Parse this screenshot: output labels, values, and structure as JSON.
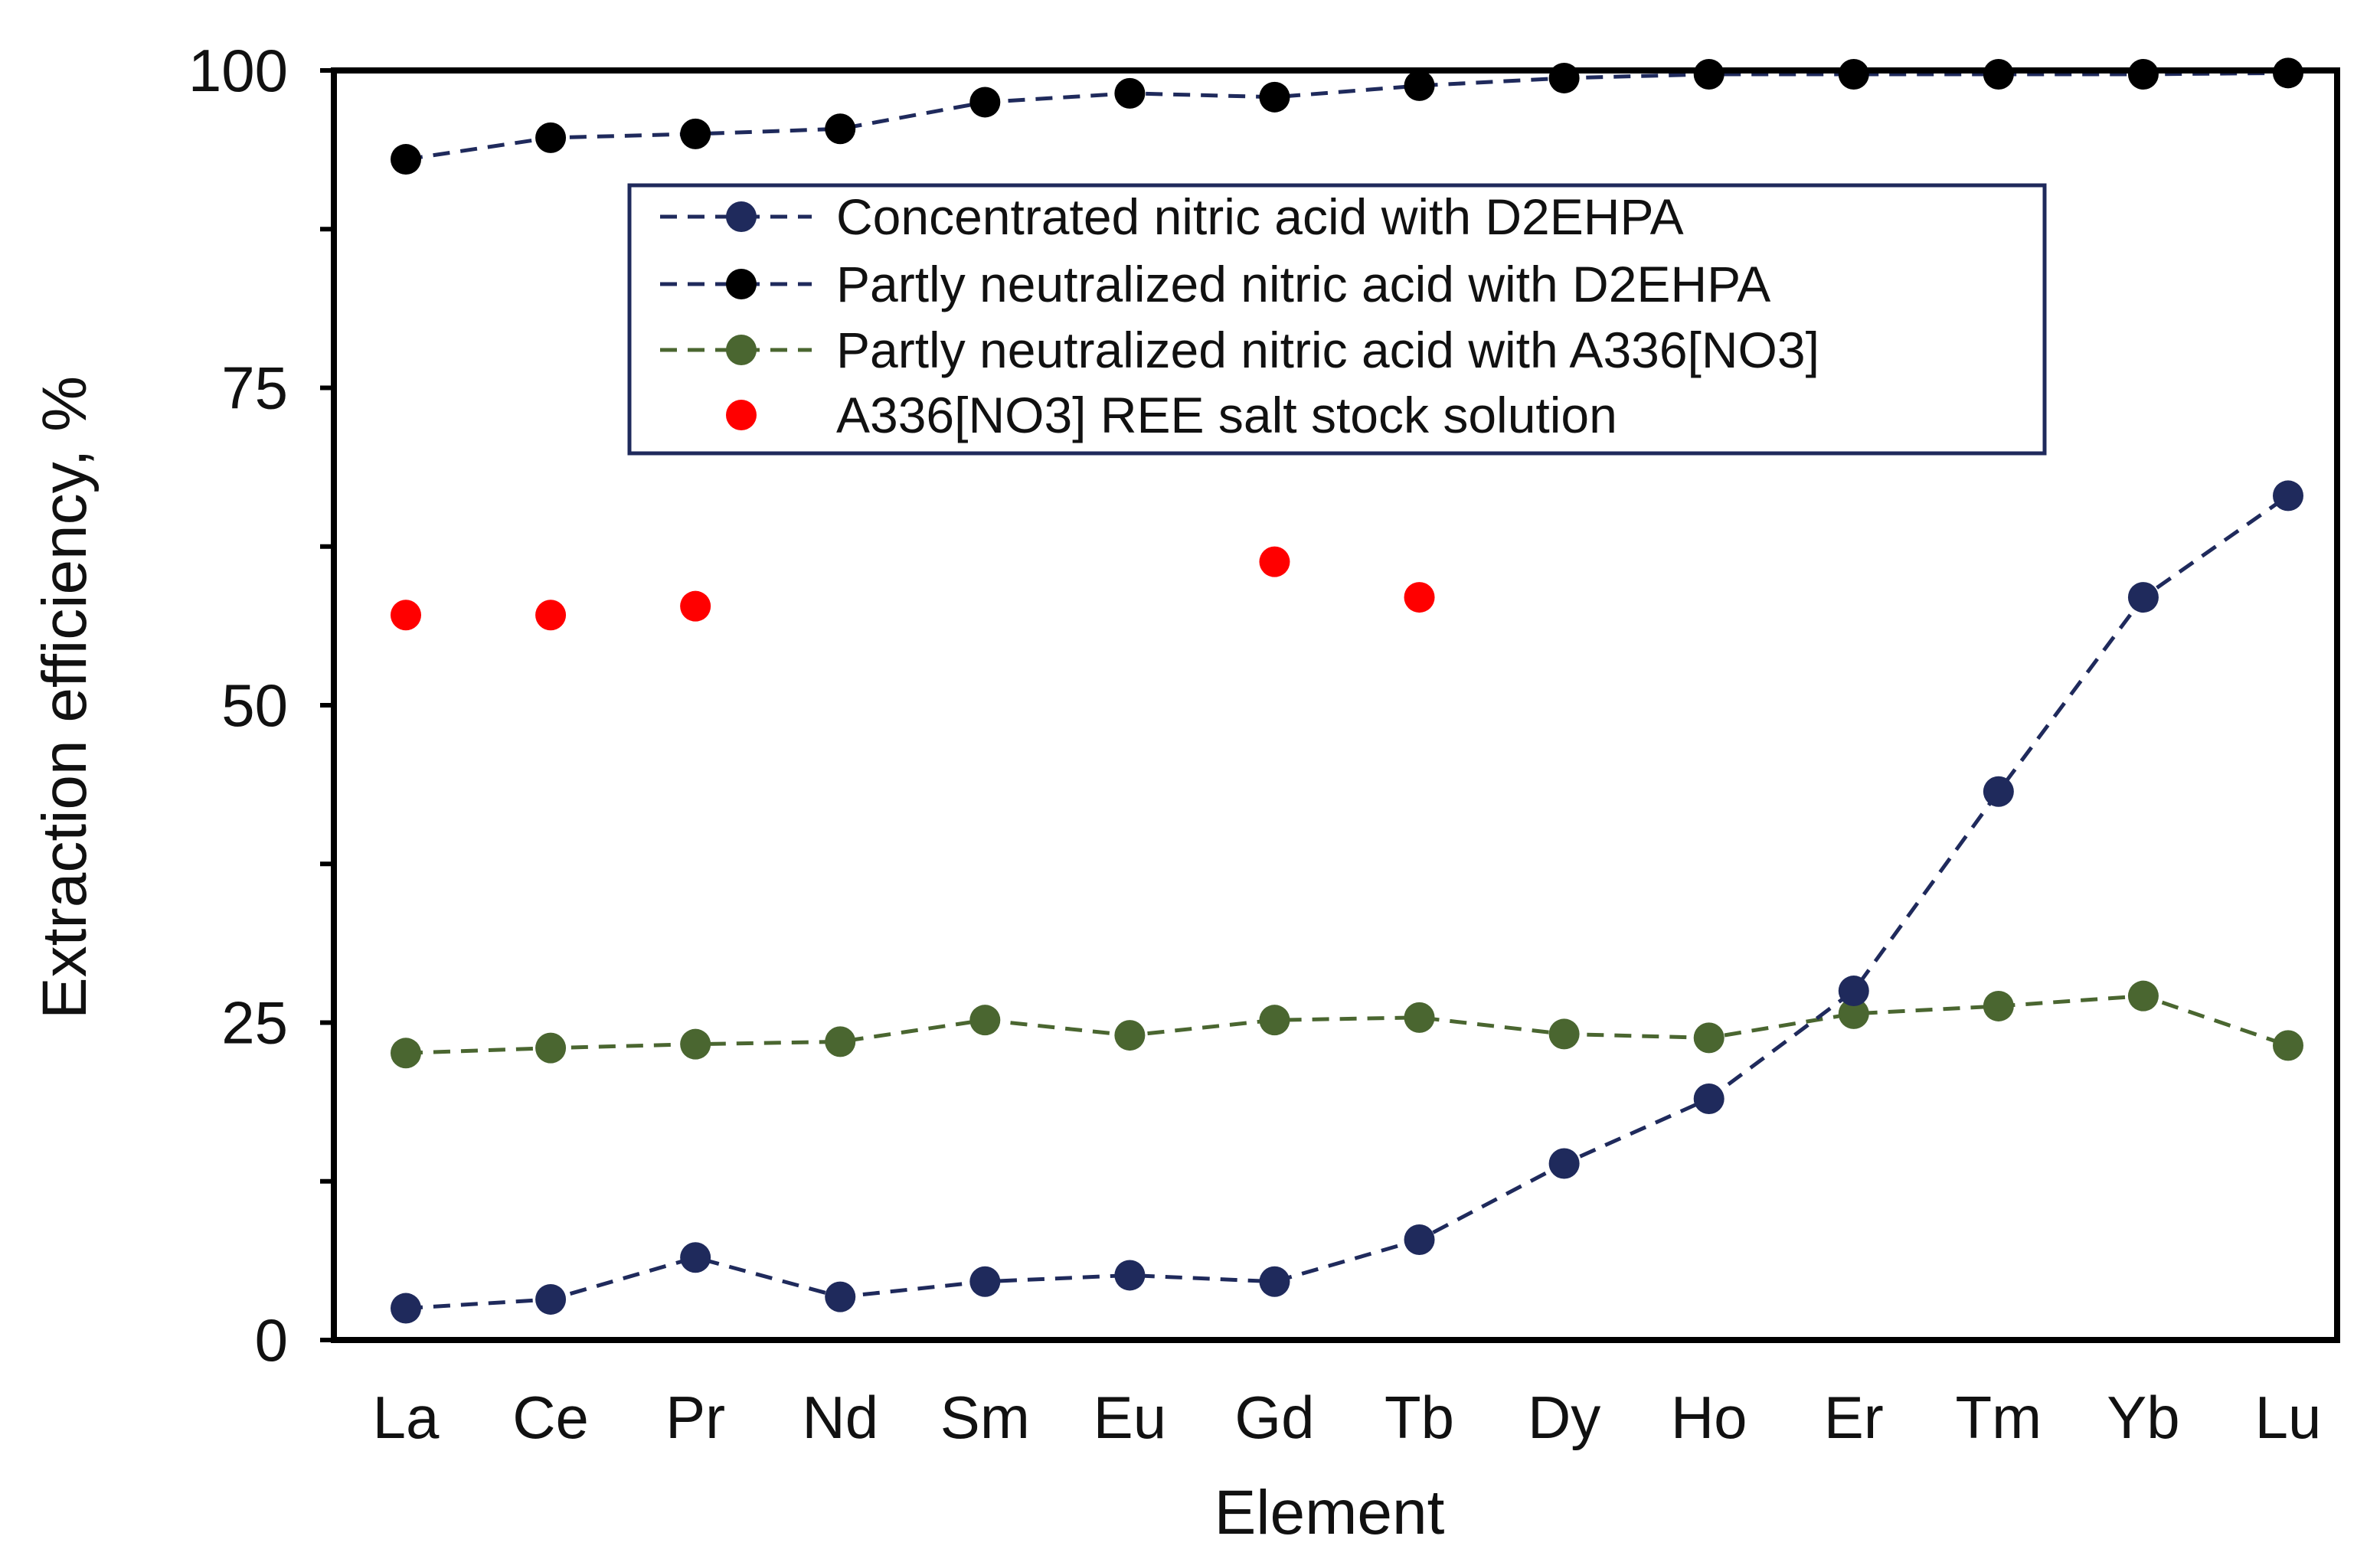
{
  "chart_data": {
    "type": "line",
    "title": "",
    "xlabel": "Element",
    "ylabel": "Extraction efficiency, %",
    "ylim": [
      0,
      100
    ],
    "yticks": [
      0,
      25,
      50,
      75,
      100
    ],
    "yticks_labels": [
      "0",
      "25",
      "50",
      "75",
      "100"
    ],
    "grid": false,
    "legend_position": "top-center",
    "categories": [
      "La",
      "Ce",
      "Pr",
      "Nd",
      "Sm",
      "Eu",
      "Gd",
      "Tb",
      "Dy",
      "Ho",
      "Er",
      "Tm",
      "Yb",
      "Lu"
    ],
    "series": [
      {
        "name": "Concentrated nitric acid with D2EHPA",
        "color": "#1f2a5c",
        "line": "dashed",
        "values": [
          2.5,
          3.2,
          6.5,
          3.4,
          4.6,
          5.1,
          4.6,
          7.9,
          13.9,
          19.0,
          27.5,
          43.2,
          58.5,
          66.5
        ]
      },
      {
        "name": "Partly neutralized nitric acid with D2EHPA",
        "color": "#000000",
        "line": "dashed",
        "values": [
          93.0,
          94.7,
          95.0,
          95.4,
          97.5,
          98.2,
          97.9,
          98.8,
          99.4,
          99.7,
          99.7,
          99.7,
          99.7,
          99.8
        ]
      },
      {
        "name": "Partly neutralized nitric acid with A336[NO3]",
        "color": "#4a6630",
        "line": "dashed",
        "values": [
          22.6,
          23.0,
          23.3,
          23.5,
          25.2,
          24.0,
          25.2,
          25.4,
          24.1,
          23.8,
          25.7,
          26.3,
          27.1,
          23.2
        ]
      },
      {
        "name": "A336[NO3] REE salt stock solution",
        "color": "#ff0000",
        "line": "none",
        "values": [
          57.1,
          57.1,
          57.8,
          null,
          null,
          null,
          61.3,
          58.5,
          null,
          null,
          null,
          null,
          null,
          null
        ]
      }
    ]
  }
}
